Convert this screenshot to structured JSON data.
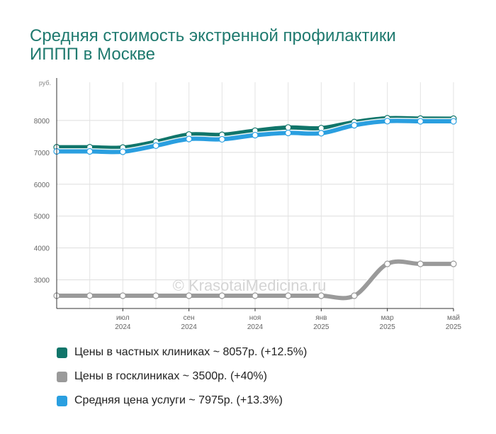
{
  "title_lines": [
    "Средняя стоимость экстренной профилактики",
    "ИППП в Москве"
  ],
  "watermark": "© KrasotaiMedicina.ru",
  "colors": {
    "private": "#10756a",
    "public": "#9a9a9a",
    "average": "#2a9fe0"
  },
  "legend": [
    {
      "label": "Цены в частных клиниках ~ 8057р. (+12.5%)",
      "color": "#10756a"
    },
    {
      "label": "Цены в госклиниках ~ 3500р. (+40%)",
      "color": "#9a9a9a"
    },
    {
      "label": "Средняя цена услуги ~ 7975р. (+13.3%)",
      "color": "#2a9fe0"
    }
  ],
  "chart_data": {
    "type": "line",
    "x_months": [
      "2024-05",
      "2024-06",
      "2024-07",
      "2024-08",
      "2024-09",
      "2024-10",
      "2024-11",
      "2024-12",
      "2025-01",
      "2025-02",
      "2025-03",
      "2025-04",
      "2025-05"
    ],
    "x_ticks": [
      {
        "month": "2024-07",
        "label": "июл",
        "year": "2024"
      },
      {
        "month": "2024-09",
        "label": "сен",
        "year": "2024"
      },
      {
        "month": "2024-11",
        "label": "ноя",
        "year": "2024"
      },
      {
        "month": "2025-01",
        "label": "янв",
        "year": "2025"
      },
      {
        "month": "2025-03",
        "label": "мар",
        "year": "2025"
      },
      {
        "month": "2025-05",
        "label": "май",
        "year": "2025"
      }
    ],
    "y_unit": "руб.",
    "y_ticks": [
      3000,
      4000,
      5000,
      6000,
      7000,
      8000
    ],
    "ylim": [
      2100,
      9200
    ],
    "grid": true,
    "legend_position": "bottom",
    "series": [
      {
        "name": "Цены в частных клиниках",
        "color": "#10756a",
        "values": [
          7160,
          7160,
          7150,
          7330,
          7560,
          7550,
          7680,
          7780,
          7760,
          7950,
          8070,
          8060,
          8057
        ]
      },
      {
        "name": "Цены в госклиниках",
        "color": "#9a9a9a",
        "values": [
          2500,
          2500,
          2500,
          2500,
          2500,
          2500,
          2500,
          2500,
          2500,
          2500,
          3500,
          3500,
          3500
        ]
      },
      {
        "name": "Средняя цена услуги",
        "color": "#2a9fe0",
        "values": [
          7030,
          7030,
          7020,
          7210,
          7420,
          7410,
          7540,
          7610,
          7600,
          7850,
          7980,
          7975,
          7975
        ]
      }
    ]
  }
}
